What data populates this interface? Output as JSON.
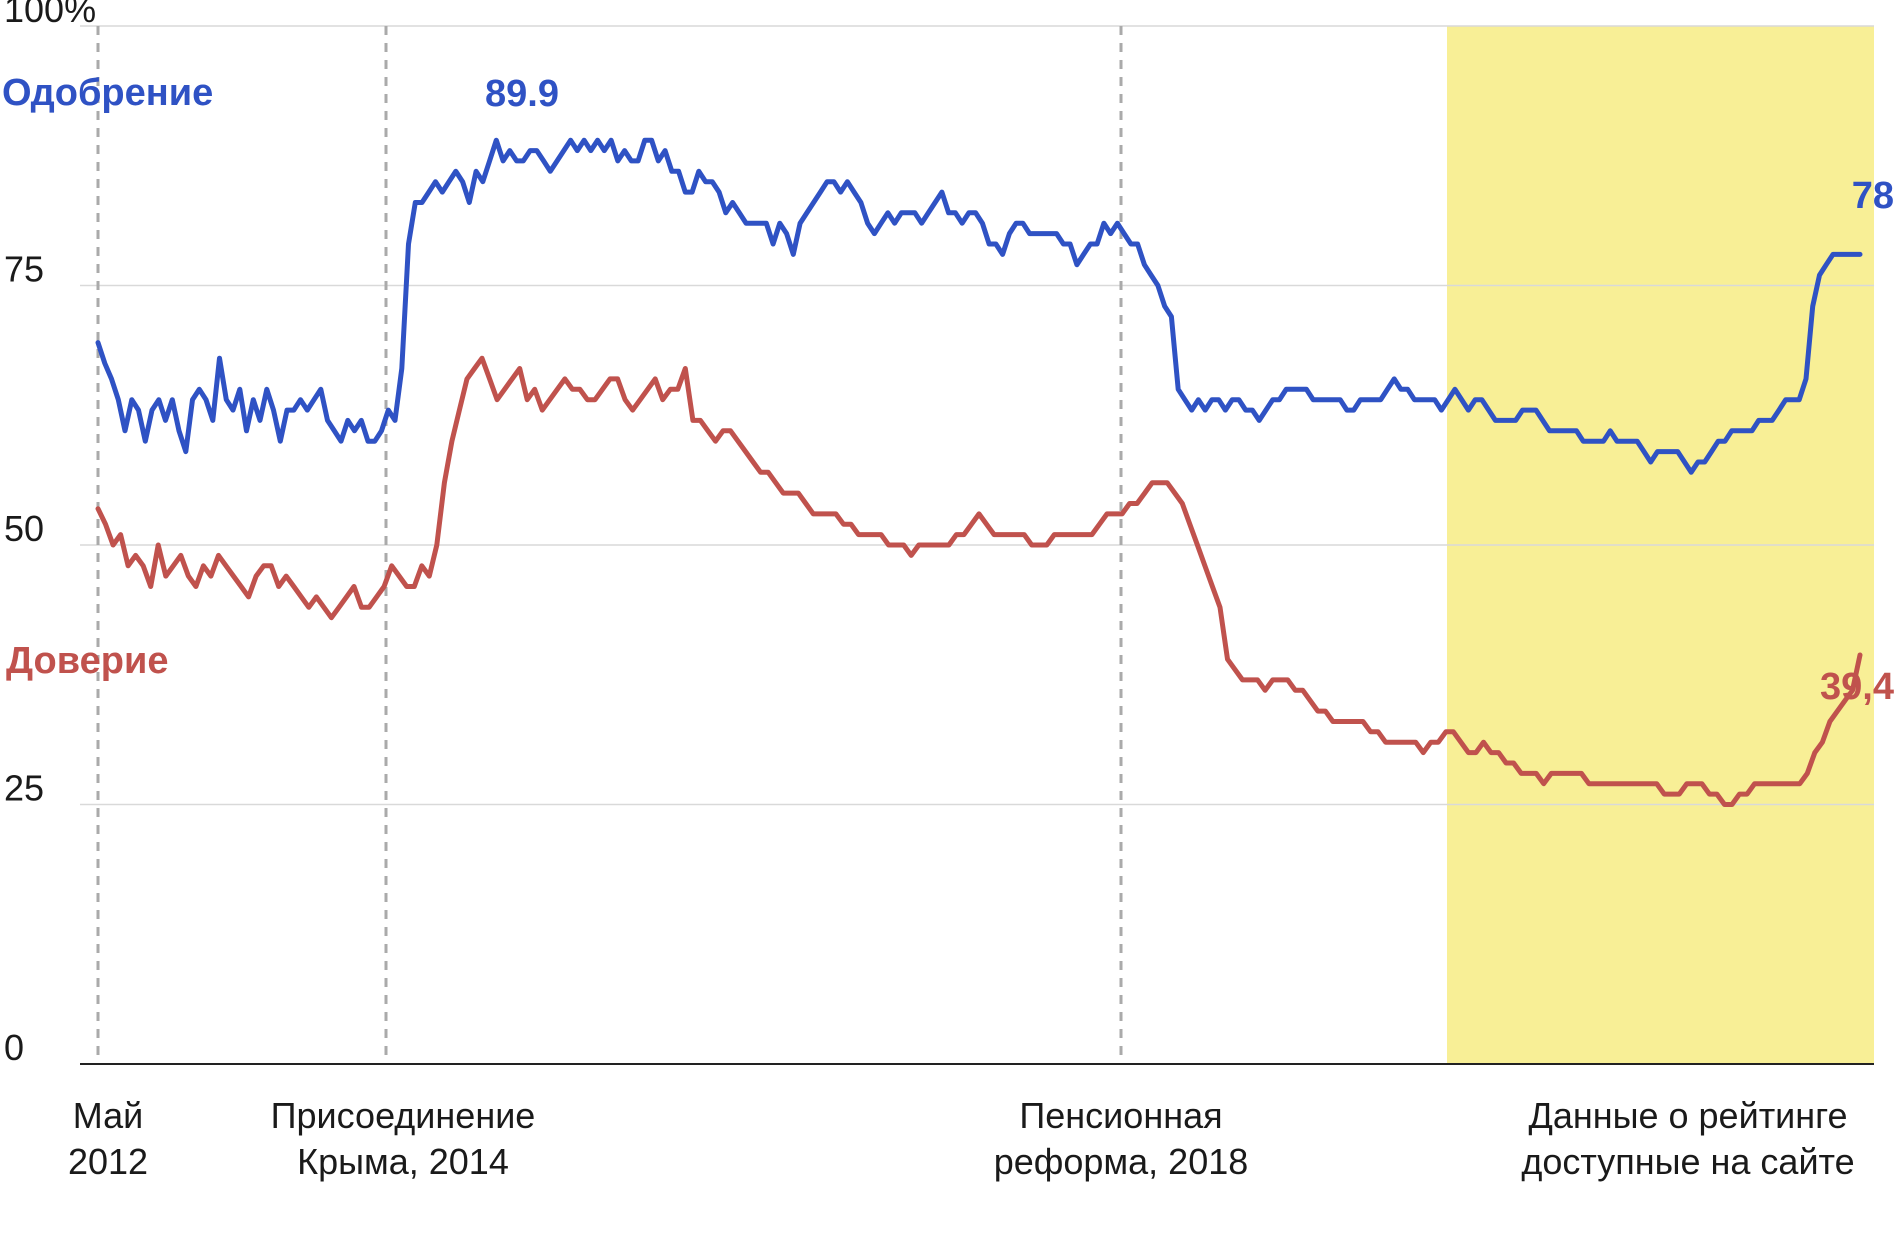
{
  "colors": {
    "approval": "#2f52c4",
    "trust": "#c0524d",
    "highlight": "#f8ef96",
    "grid": "#d9d9d9",
    "axis": "#222222",
    "event_line": "#aaaaaa"
  },
  "chart_data": {
    "type": "line",
    "ylim": [
      0,
      100
    ],
    "y_ticks": [
      {
        "value": 0,
        "label": "0"
      },
      {
        "value": 25,
        "label": "25"
      },
      {
        "value": 50,
        "label": "50"
      },
      {
        "value": 75,
        "label": "75"
      },
      {
        "value": 100,
        "label": "100%"
      }
    ],
    "grid": true,
    "highlight_region": {
      "label_lines": [
        "Данные о рейтинге",
        "доступные на сайте"
      ]
    },
    "events": [
      {
        "lines": [
          "Май",
          "2012"
        ]
      },
      {
        "lines": [
          "Присоединение",
          "Крыма, 2014"
        ]
      },
      {
        "lines": [
          "Пенсионная",
          "реформа, 2018"
        ]
      }
    ],
    "series": [
      {
        "name": "Одобрение",
        "peak_label": "89.9",
        "last_label": "78",
        "values": [
          69.5,
          67.5,
          66,
          64,
          61,
          64,
          63,
          60,
          63,
          64,
          62,
          64,
          61,
          59,
          64,
          65,
          64,
          62,
          68,
          64,
          63,
          65,
          61,
          64,
          62,
          65,
          63,
          60,
          63,
          63,
          64,
          63,
          64,
          65,
          62,
          61,
          60,
          62,
          61,
          62,
          60,
          60,
          61,
          63,
          62,
          67,
          79,
          83,
          83,
          84,
          85,
          84,
          85,
          86,
          85,
          83,
          86,
          85,
          87,
          89,
          87,
          88,
          87,
          87,
          88,
          88,
          87,
          86,
          87,
          88,
          89,
          88,
          89,
          88,
          89,
          88,
          89,
          87,
          88,
          87,
          87,
          89,
          89,
          87,
          88,
          86,
          86,
          84,
          84,
          86,
          85,
          85,
          84,
          82,
          83,
          82,
          81,
          81,
          81,
          81,
          79,
          81,
          80,
          78,
          81,
          82,
          83,
          84,
          85,
          85,
          84,
          85,
          84,
          83,
          81,
          80,
          81,
          82,
          81,
          82,
          82,
          82,
          81,
          82,
          83,
          84,
          82,
          82,
          81,
          82,
          82,
          81,
          79,
          79,
          78,
          80,
          81,
          81,
          80,
          80,
          80,
          80,
          80,
          79,
          79,
          77,
          78,
          79,
          79,
          81,
          80,
          81,
          80,
          79,
          79,
          77,
          76,
          75,
          73,
          72,
          65,
          64,
          63,
          64,
          63,
          64,
          64,
          63,
          64,
          64,
          63,
          63,
          62,
          63,
          64,
          64,
          65,
          65,
          65,
          65,
          64,
          64,
          64,
          64,
          64,
          63,
          63,
          64,
          64,
          64,
          64,
          65,
          66,
          65,
          65,
          64,
          64,
          64,
          64,
          63,
          64,
          65,
          64,
          63,
          64,
          64,
          63,
          62,
          62,
          62,
          62,
          63,
          63,
          63,
          62,
          61,
          61,
          61,
          61,
          61,
          60,
          60,
          60,
          60,
          61,
          60,
          60,
          60,
          60,
          59,
          58,
          59,
          59,
          59,
          59,
          58,
          57,
          58,
          58,
          59,
          60,
          60,
          61,
          61,
          61,
          61,
          62,
          62,
          62,
          63,
          64,
          64,
          64,
          66,
          73,
          76,
          77,
          78,
          78,
          78,
          78,
          78
        ]
      },
      {
        "name": "Доверие",
        "values": [
          53.5,
          52,
          50,
          51,
          48,
          49,
          48,
          46,
          50,
          47,
          48,
          49,
          47,
          46,
          48,
          47,
          49,
          48,
          47,
          46,
          45,
          47,
          48,
          48,
          46,
          47,
          46,
          45,
          44,
          45,
          44,
          43,
          44,
          45,
          46,
          44,
          44,
          45,
          46,
          48,
          47,
          46,
          46,
          48,
          47,
          50,
          56,
          60,
          63,
          66,
          67,
          68,
          66,
          64,
          65,
          66,
          67,
          64,
          65,
          63,
          64,
          65,
          66,
          65,
          65,
          64,
          64,
          65,
          66,
          66,
          64,
          63,
          64,
          65,
          66,
          64,
          65,
          65,
          67,
          62,
          62,
          61,
          60,
          61,
          61,
          60,
          59,
          58,
          57,
          57,
          56,
          55,
          55,
          55,
          54,
          53,
          53,
          53,
          53,
          52,
          52,
          51,
          51,
          51,
          51,
          50,
          50,
          50,
          49,
          50,
          50,
          50,
          50,
          50,
          51,
          51,
          52,
          53,
          52,
          51,
          51,
          51,
          51,
          51,
          50,
          50,
          50,
          51,
          51,
          51,
          51,
          51,
          51,
          52,
          53,
          53,
          53,
          54,
          54,
          55,
          56,
          56,
          56,
          55,
          54,
          52,
          50,
          48,
          46,
          44,
          39,
          38,
          37,
          37,
          37,
          36,
          37,
          37,
          37,
          36,
          36,
          35,
          34,
          34,
          33,
          33,
          33,
          33,
          33,
          32,
          32,
          31,
          31,
          31,
          31,
          31,
          30,
          31,
          31,
          32,
          32,
          31,
          30,
          30,
          31,
          30,
          30,
          29,
          29,
          28,
          28,
          28,
          27,
          28,
          28,
          28,
          28,
          28,
          27,
          27,
          27,
          27,
          27,
          27,
          27,
          27,
          27,
          27,
          26,
          26,
          26,
          27,
          27,
          27,
          26,
          26,
          25,
          25,
          26,
          26,
          27,
          27,
          27,
          27,
          27,
          27,
          27,
          28,
          30,
          31,
          33,
          34,
          35,
          36,
          39.4
        ]
      }
    ]
  }
}
